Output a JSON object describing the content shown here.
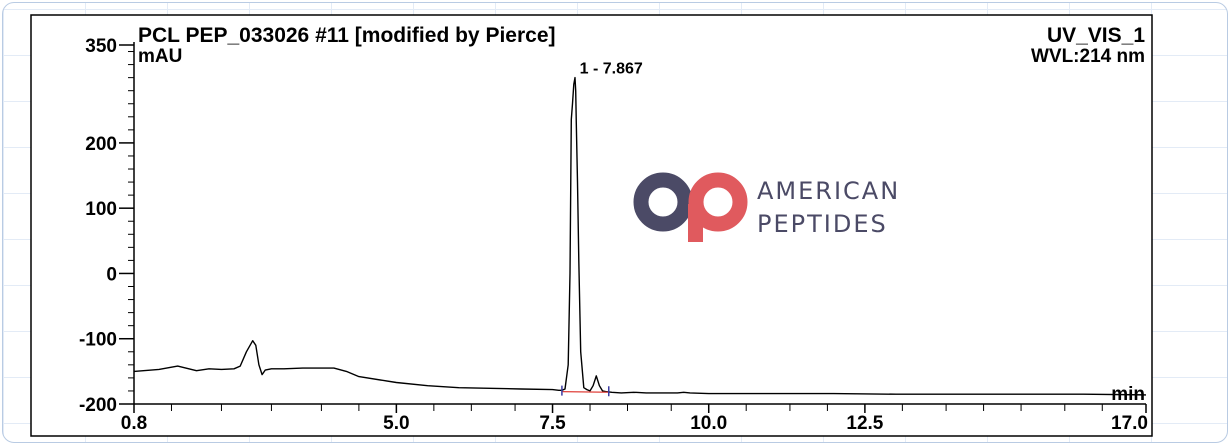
{
  "chart_data": {
    "type": "line",
    "header_left": "PCL PEP_033026 #11 [modified by Pierce]",
    "header_right": "UV_VIS_1",
    "wavelength": "WVL:214 nm",
    "ylabel": "mAU",
    "xlabel": "min",
    "xlim": [
      0.8,
      17.0
    ],
    "ylim": [
      -200,
      350
    ],
    "x_ticks": [
      "0.8",
      "5.0",
      "7.5",
      "10.0",
      "12.5",
      "17.0"
    ],
    "x_tick_values": [
      0.8,
      5.0,
      7.5,
      10.0,
      12.5,
      17.0
    ],
    "x_minor_ticks": [
      1.4,
      2.2,
      3.0,
      3.8,
      4.4,
      5.6,
      6.2,
      6.9,
      8.1,
      8.7,
      9.4,
      10.6,
      11.3,
      11.9,
      13.1,
      13.8,
      14.4,
      15.0,
      15.7,
      16.3
    ],
    "y_ticks": [
      "350",
      "200",
      "100",
      "0",
      "-100",
      "-200"
    ],
    "y_tick_values": [
      350,
      200,
      100,
      0,
      -100,
      -200
    ],
    "peak_label": "1 - 7.867",
    "peak_label_x": 7.87,
    "peak_label_y": 300,
    "line_color": "#000000",
    "baseline_color": "#e0403a",
    "series": [
      {
        "x": [
          0.8,
          1.2,
          1.5,
          1.8,
          2.0,
          2.2,
          2.4,
          2.5,
          2.6,
          2.7,
          2.75,
          2.8,
          2.85,
          2.9,
          3.0,
          3.2,
          3.5,
          4.0,
          4.2,
          4.4,
          5.0,
          5.5,
          6.0,
          6.5,
          7.0,
          7.5,
          7.6,
          7.65,
          7.7,
          7.75,
          7.78,
          7.8,
          7.82,
          7.84,
          7.86,
          7.87,
          7.88,
          7.9,
          7.92,
          7.95,
          8.0,
          8.05,
          8.1,
          8.15,
          8.2,
          8.25,
          8.3,
          8.35,
          8.45,
          8.6,
          8.8,
          9.0,
          9.5,
          9.6,
          9.7,
          10.0,
          11.0,
          12.0,
          13.0,
          14.0,
          15.0,
          16.0,
          17.0
        ],
        "y": [
          -150,
          -147,
          -142,
          -149,
          -146,
          -147,
          -146,
          -142,
          -120,
          -103,
          -110,
          -140,
          -155,
          -148,
          -146,
          -146,
          -145,
          -145,
          -150,
          -158,
          -167,
          -172,
          -175,
          -176,
          -177,
          -178,
          -179,
          -179,
          -177,
          -140,
          0,
          236,
          260,
          290,
          300,
          280,
          230,
          140,
          20,
          -120,
          -175,
          -178,
          -180,
          -172,
          -157,
          -172,
          -180,
          -181,
          -182,
          -183,
          -182,
          -183,
          -183,
          -182,
          -183,
          -184,
          -184,
          -184,
          -185,
          -185,
          -185,
          -185,
          -186
        ]
      }
    ],
    "baseline": {
      "x": [
        7.65,
        8.4
      ],
      "y": [
        -181,
        -182
      ]
    },
    "logo": {
      "line1": "AMERICAN",
      "line2": "PEPTIDES",
      "circle_color": "#4b4a66",
      "accent_color": "#e05a5e",
      "text_color": "#4b4a66"
    }
  }
}
